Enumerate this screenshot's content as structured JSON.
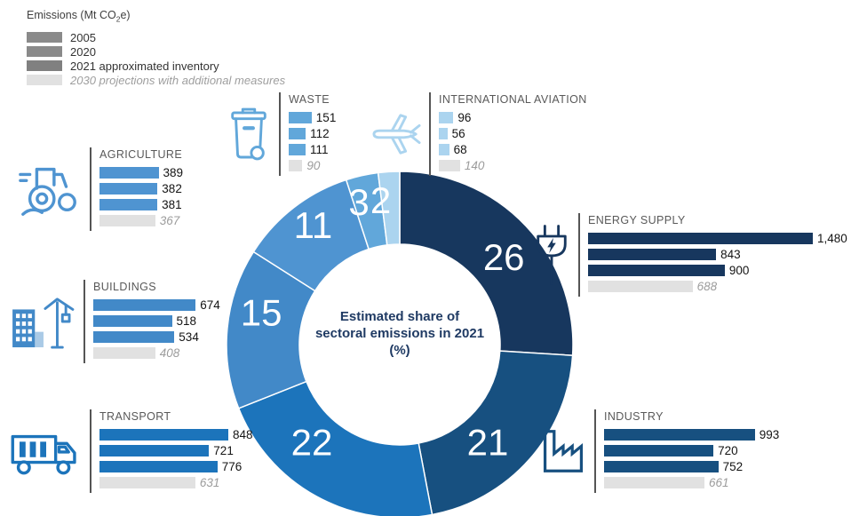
{
  "legend": {
    "title": {
      "pre": "Emissions (Mt CO",
      "sub": "2",
      "post": "e)"
    },
    "items": [
      {
        "label": "2005",
        "swatch": "#8a8a8a",
        "italic": false
      },
      {
        "label": "2020",
        "swatch": "#8a8a8a",
        "italic": false
      },
      {
        "label": "2021 approximated inventory",
        "swatch": "#808080",
        "italic": false
      },
      {
        "label": "2030 projections with additional measures",
        "swatch": "#e1e1e1",
        "italic": true
      }
    ]
  },
  "donut_center_text": [
    "Estimated share of",
    "sectoral emissions in 2021",
    "(%)"
  ],
  "chart_data": {
    "type": "donut+bar",
    "title": "Estimated share of sectoral emissions in 2021 (%)",
    "units": "Mt CO2e",
    "series_years": [
      "2005",
      "2020",
      "2021 approximated inventory",
      "2030 projections with additional measures"
    ],
    "donut_start": "12 o'clock, clockwise",
    "bar_axis_max": 1480,
    "projection_color": "#e1e1e1",
    "projection_text_color": "#9c9c9c",
    "sectors": [
      {
        "name": "ENERGY SUPPLY",
        "icon": "plug-icon",
        "share_pct": 26,
        "color": "#17375e",
        "values": [
          1480,
          843,
          900,
          688
        ],
        "value_labels": [
          "1,480",
          "843",
          "900",
          "688"
        ]
      },
      {
        "name": "INDUSTRY",
        "icon": "factory-icon",
        "share_pct": 21,
        "color": "#175080",
        "values": [
          993,
          720,
          752,
          661
        ],
        "value_labels": [
          "993",
          "720",
          "752",
          "661"
        ]
      },
      {
        "name": "TRANSPORT",
        "icon": "truck-icon",
        "share_pct": 22,
        "color": "#1c74bb",
        "values": [
          848,
          721,
          776,
          631
        ],
        "value_labels": [
          "848",
          "721",
          "776",
          "631"
        ]
      },
      {
        "name": "BUILDINGS",
        "icon": "building-crane-icon",
        "share_pct": 15,
        "color": "#4289c8",
        "values": [
          674,
          518,
          534,
          408
        ],
        "value_labels": [
          "674",
          "518",
          "534",
          "408"
        ]
      },
      {
        "name": "AGRICULTURE",
        "icon": "tractor-icon",
        "share_pct": 11,
        "color": "#4f94d1",
        "values": [
          389,
          382,
          381,
          367
        ],
        "value_labels": [
          "389",
          "382",
          "381",
          "367"
        ]
      },
      {
        "name": "WASTE",
        "icon": "trash-bin-icon",
        "share_pct": 3,
        "color": "#61a7da",
        "values": [
          151,
          112,
          111,
          90
        ],
        "value_labels": [
          "151",
          "112",
          "111",
          "90"
        ]
      },
      {
        "name": "INTERNATIONAL AVIATION",
        "icon": "airplane-icon",
        "share_pct": 2,
        "color": "#abd4ef",
        "values": [
          96,
          56,
          68,
          140
        ],
        "value_labels": [
          "96",
          "56",
          "68",
          "140"
        ]
      }
    ]
  }
}
